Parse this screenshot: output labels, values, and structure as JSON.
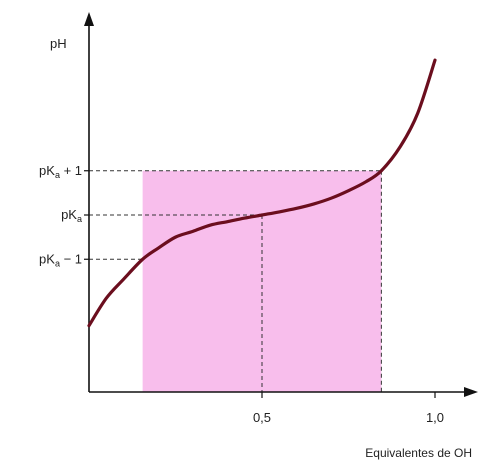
{
  "chart_data": {
    "type": "line",
    "title": "",
    "ylabel": "pH",
    "xlabel": "Equivalentes de OH",
    "xlim": [
      0,
      1.1
    ],
    "ylim": [
      0,
      9.5
    ],
    "x_ticks": [
      {
        "value": 0.5,
        "label": "0,5"
      },
      {
        "value": 1.0,
        "label": "1,0"
      }
    ],
    "y_ticks": [
      {
        "value": 5.0,
        "base": "pK",
        "sub": "a",
        "suffix": " + 1"
      },
      {
        "value": 4.0,
        "base": "pK",
        "sub": "a",
        "suffix": ""
      },
      {
        "value": 3.0,
        "base": "pK",
        "sub": "a",
        "suffix": " − 1"
      }
    ],
    "buffer_region": {
      "x": [
        0.155,
        0.845
      ],
      "y": [
        0,
        5.0
      ]
    },
    "series": [
      {
        "values": [
          {
            "x": 0.0,
            "y": 1.5
          },
          {
            "x": 0.05,
            "y": 2.12
          },
          {
            "x": 0.1,
            "y": 2.55
          },
          {
            "x": 0.155,
            "y": 3.0
          },
          {
            "x": 0.2,
            "y": 3.25
          },
          {
            "x": 0.25,
            "y": 3.5
          },
          {
            "x": 0.3,
            "y": 3.63
          },
          {
            "x": 0.35,
            "y": 3.77
          },
          {
            "x": 0.4,
            "y": 3.85
          },
          {
            "x": 0.45,
            "y": 3.93
          },
          {
            "x": 0.5,
            "y": 4.0
          },
          {
            "x": 0.55,
            "y": 4.07
          },
          {
            "x": 0.6,
            "y": 4.15
          },
          {
            "x": 0.65,
            "y": 4.25
          },
          {
            "x": 0.7,
            "y": 4.38
          },
          {
            "x": 0.75,
            "y": 4.55
          },
          {
            "x": 0.8,
            "y": 4.75
          },
          {
            "x": 0.845,
            "y": 5.0
          },
          {
            "x": 0.9,
            "y": 5.55
          },
          {
            "x": 0.95,
            "y": 6.3
          },
          {
            "x": 1.0,
            "y": 7.5
          }
        ]
      }
    ],
    "grid": false,
    "legend": "none",
    "colors": {
      "curve": "#6b0e1e",
      "region": "#f5a8e6",
      "axis": "#111111",
      "guide": "#333333"
    }
  }
}
